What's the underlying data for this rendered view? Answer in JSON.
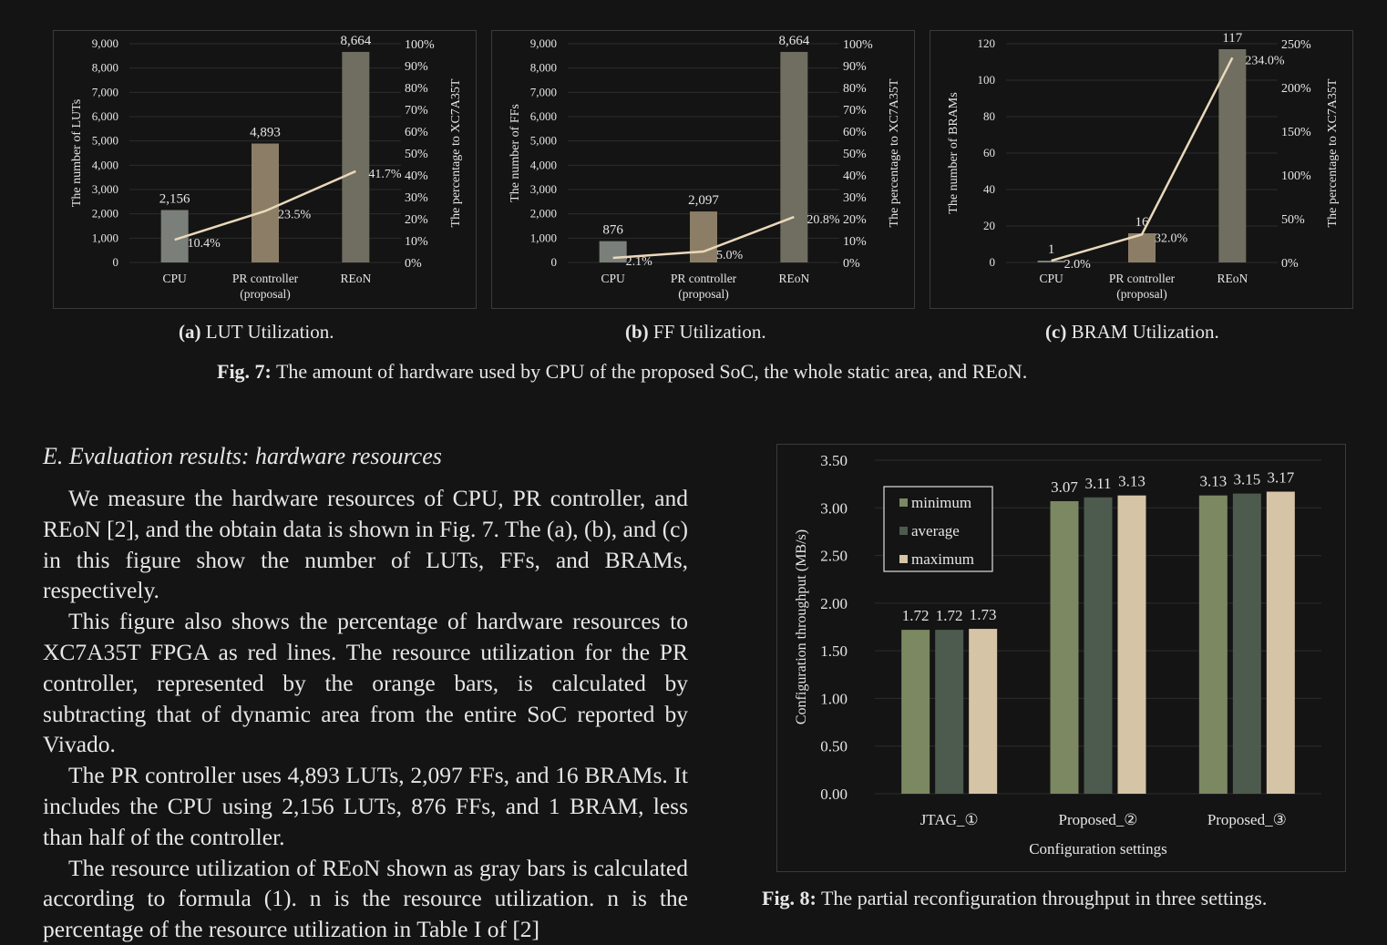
{
  "fig7": {
    "subcaptions": [
      {
        "label": "(a)",
        "text": " LUT Utilization."
      },
      {
        "label": "(b)",
        "text": " FF Utilization."
      },
      {
        "label": "(c)",
        "text": " BRAM Utilization."
      }
    ],
    "caption_label": "Fig. 7:",
    "caption_text": " The amount of hardware used by CPU of the proposed SoC, the whole static area, and REoN."
  },
  "fig8": {
    "caption_label": "Fig. 8:",
    "caption_text": " The partial reconfiguration throughput in three settings."
  },
  "section": {
    "heading": "E.  Evaluation results: hardware resources",
    "paragraphs": [
      "We measure the hardware resources of CPU, PR controller, and REoN [2], and the obtain data is shown in Fig. 7. The (a), (b), and (c) in this figure show the number of LUTs, FFs, and BRAMs, respectively.",
      "This figure also shows the percentage of hardware resources to XC7A35T FPGA as red lines. The resource utilization for the PR controller, represented by the orange bars, is calculated by subtracting that of dynamic area from the entire SoC reported by Vivado.",
      "The PR controller uses 4,893 LUTs, 2,097 FFs, and 16 BRAMs. It includes the CPU using 2,156 LUTs, 876 FFs, and 1 BRAM, less than half of the controller.",
      "The resource utilization of REoN shown as gray bars is calculated according to formula (1). n is the resource utilization. n is the percentage of the resource utilization in Table I of [2]"
    ]
  },
  "colors": {
    "background": "#141414",
    "text": "#e6e6e6",
    "bar_cpu": "#7b7f79",
    "bar_pr": "#8c7e66",
    "bar_reon": "#6f6e60",
    "line": "#ead8bb",
    "minimum": "#7b8862",
    "average": "#4d5a4e",
    "maximum": "#d6c4a6"
  },
  "chart_data": [
    {
      "type": "bar",
      "id": "lut",
      "categories": [
        "CPU",
        "PR controller\n(proposal)",
        "REoN"
      ],
      "values": [
        2156,
        4893,
        8664
      ],
      "value_labels": [
        "2,156",
        "4,893",
        "8,664"
      ],
      "ylabel": "The number of LUTs",
      "ylim": [
        0,
        9000
      ],
      "yticks": [
        "0",
        "1,000",
        "2,000",
        "3,000",
        "4,000",
        "5,000",
        "6,000",
        "7,000",
        "8,000",
        "9,000"
      ],
      "y2label": "The percentage to XC7A35T",
      "y2lim": [
        0,
        100
      ],
      "y2ticks": [
        "0%",
        "10%",
        "20%",
        "30%",
        "40%",
        "50%",
        "60%",
        "70%",
        "80%",
        "90%",
        "100%"
      ],
      "line_values": [
        10.4,
        23.5,
        41.7
      ],
      "line_labels": [
        "10.4%",
        "23.5%",
        "41.7%"
      ]
    },
    {
      "type": "bar",
      "id": "ff",
      "categories": [
        "CPU",
        "PR controller\n(proposal)",
        "REoN"
      ],
      "values": [
        876,
        2097,
        8664
      ],
      "value_labels": [
        "876",
        "2,097",
        "8,664"
      ],
      "ylabel": "The number of FFs",
      "ylim": [
        0,
        9000
      ],
      "yticks": [
        "0",
        "1,000",
        "2,000",
        "3,000",
        "4,000",
        "5,000",
        "6,000",
        "7,000",
        "8,000",
        "9,000"
      ],
      "y2label": "The percentage to XC7A35T",
      "y2lim": [
        0,
        100
      ],
      "y2ticks": [
        "0%",
        "10%",
        "20%",
        "30%",
        "40%",
        "50%",
        "60%",
        "70%",
        "80%",
        "90%",
        "100%"
      ],
      "line_values": [
        2.1,
        5.0,
        20.8
      ],
      "line_labels": [
        "2.1%",
        "5.0%",
        "20.8%"
      ]
    },
    {
      "type": "bar",
      "id": "bram",
      "categories": [
        "CPU",
        "PR controller\n(proposal)",
        "REoN"
      ],
      "values": [
        1,
        16,
        117
      ],
      "value_labels": [
        "1",
        "16",
        "117"
      ],
      "ylabel": "The number of BRAMs",
      "ylim": [
        0,
        120
      ],
      "yticks": [
        "0",
        "20",
        "40",
        "60",
        "80",
        "100",
        "120"
      ],
      "y2label": "The percentage to XC7A35T",
      "y2lim": [
        0,
        250
      ],
      "y2ticks": [
        "0%",
        "50%",
        "100%",
        "150%",
        "200%",
        "250%"
      ],
      "line_values": [
        2.0,
        32.0,
        234.0
      ],
      "line_labels": [
        "2.0%",
        "32.0%",
        "234.0%"
      ]
    },
    {
      "type": "bar",
      "id": "throughput",
      "categories": [
        "JTAG_①",
        "Proposed_②",
        "Proposed_③"
      ],
      "series": [
        {
          "name": "minimum",
          "values": [
            1.72,
            3.07,
            3.13
          ]
        },
        {
          "name": "average",
          "values": [
            1.72,
            3.11,
            3.15
          ]
        },
        {
          "name": "maximum",
          "values": [
            1.73,
            3.13,
            3.17
          ]
        }
      ],
      "value_labels": [
        [
          "1.72",
          "3.07",
          "3.13"
        ],
        [
          "1.72",
          "3.11",
          "3.15"
        ],
        [
          "1.73",
          "3.13",
          "3.17"
        ]
      ],
      "xlabel": "Configuration settings",
      "ylabel": "Configuration throughput (MB/s)",
      "ylim": [
        0,
        3.5
      ],
      "yticks": [
        "0.00",
        "0.50",
        "1.00",
        "1.50",
        "2.00",
        "2.50",
        "3.00",
        "3.50"
      ],
      "legend": "top-left"
    }
  ]
}
